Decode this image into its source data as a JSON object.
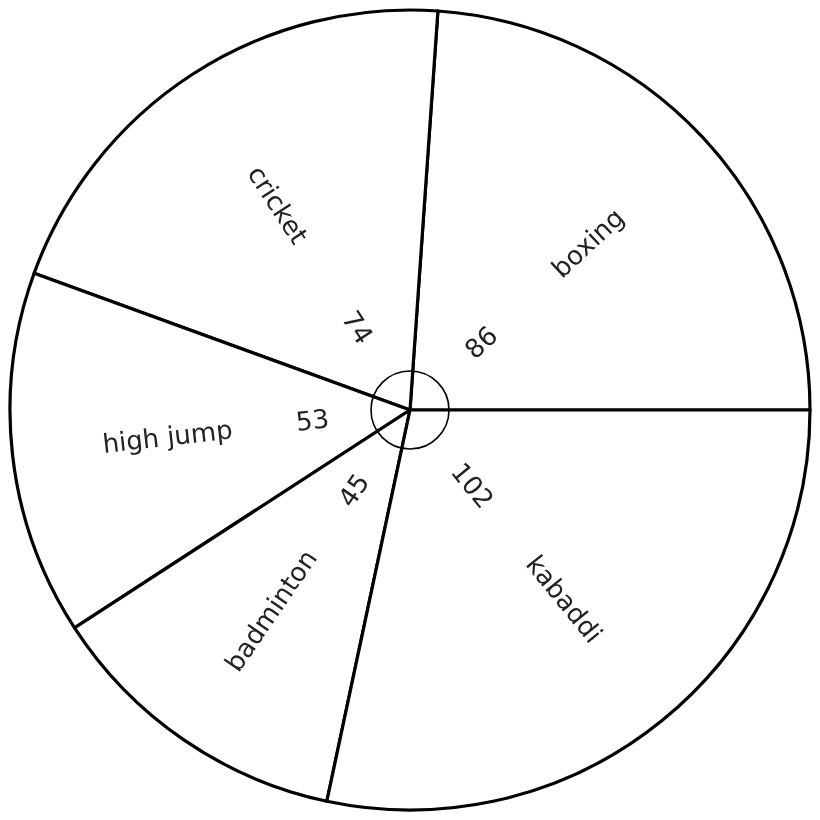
{
  "chart_data": {
    "type": "pie",
    "categories": [
      "boxing",
      "cricket",
      "high jump",
      "badminton",
      "kabaddi"
    ],
    "values": [
      86,
      74,
      53,
      45,
      102
    ],
    "colors": [
      "#ffffff",
      "#ffffff",
      "#ffffff",
      "#ffffff",
      "#ffffff"
    ],
    "data_labels": true
  }
}
